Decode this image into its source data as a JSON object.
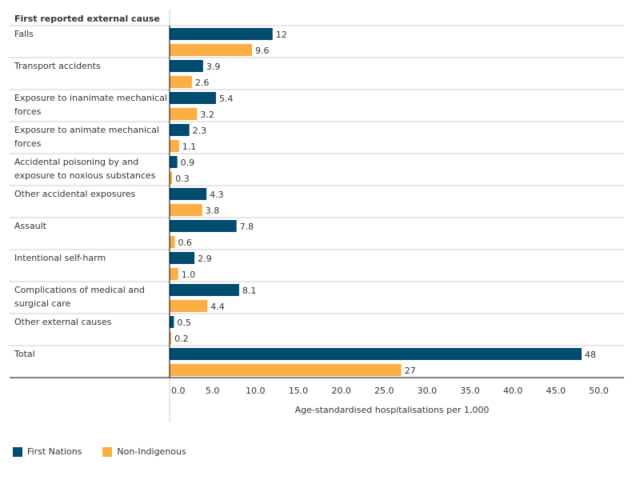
{
  "chart_data": {
    "type": "bar",
    "orientation": "horizontal",
    "row_header": "First reported external cause",
    "categories": [
      [
        "Falls"
      ],
      [
        "Transport accidents"
      ],
      [
        "Exposure to inanimate mechanical",
        "forces"
      ],
      [
        "Exposure to animate mechanical",
        "forces"
      ],
      [
        "Accidental poisoning by and",
        "exposure to noxious substances"
      ],
      [
        "Other accidental exposures"
      ],
      [
        "Assault"
      ],
      [
        "Intentional self-harm"
      ],
      [
        "Complications of medical and",
        "surgical care"
      ],
      [
        "Other external causes"
      ],
      [
        "Total"
      ]
    ],
    "series": [
      {
        "name": "First Nations",
        "color": "#004b6e",
        "values": [
          12,
          3.9,
          5.4,
          2.3,
          0.9,
          4.3,
          7.8,
          2.9,
          8.1,
          0.5,
          48
        ],
        "labels": [
          "12",
          "3.9",
          "5.4",
          "2.3",
          "0.9",
          "4.3",
          "7.8",
          "2.9",
          "8.1",
          "0.5",
          "48"
        ]
      },
      {
        "name": "Non-Indigenous",
        "color": "#fbaf42",
        "values": [
          9.6,
          2.6,
          3.2,
          1.1,
          0.3,
          3.8,
          0.6,
          1.0,
          4.4,
          0.2,
          27
        ],
        "labels": [
          "9.6",
          "2.6",
          "3.2",
          "1.1",
          "0.3",
          "3.8",
          "0.6",
          "1.0",
          "4.4",
          "0.2",
          "27"
        ]
      }
    ],
    "xlabel": "Age-standardised hospitalisations per 1,000",
    "xlim": [
      0,
      50
    ],
    "xticks": [
      "0.0",
      "5.0",
      "10.0",
      "15.0",
      "20.0",
      "25.0",
      "30.0",
      "35.0",
      "40.0",
      "45.0",
      "50.0"
    ],
    "legend": "bottom-left",
    "grid": false
  }
}
